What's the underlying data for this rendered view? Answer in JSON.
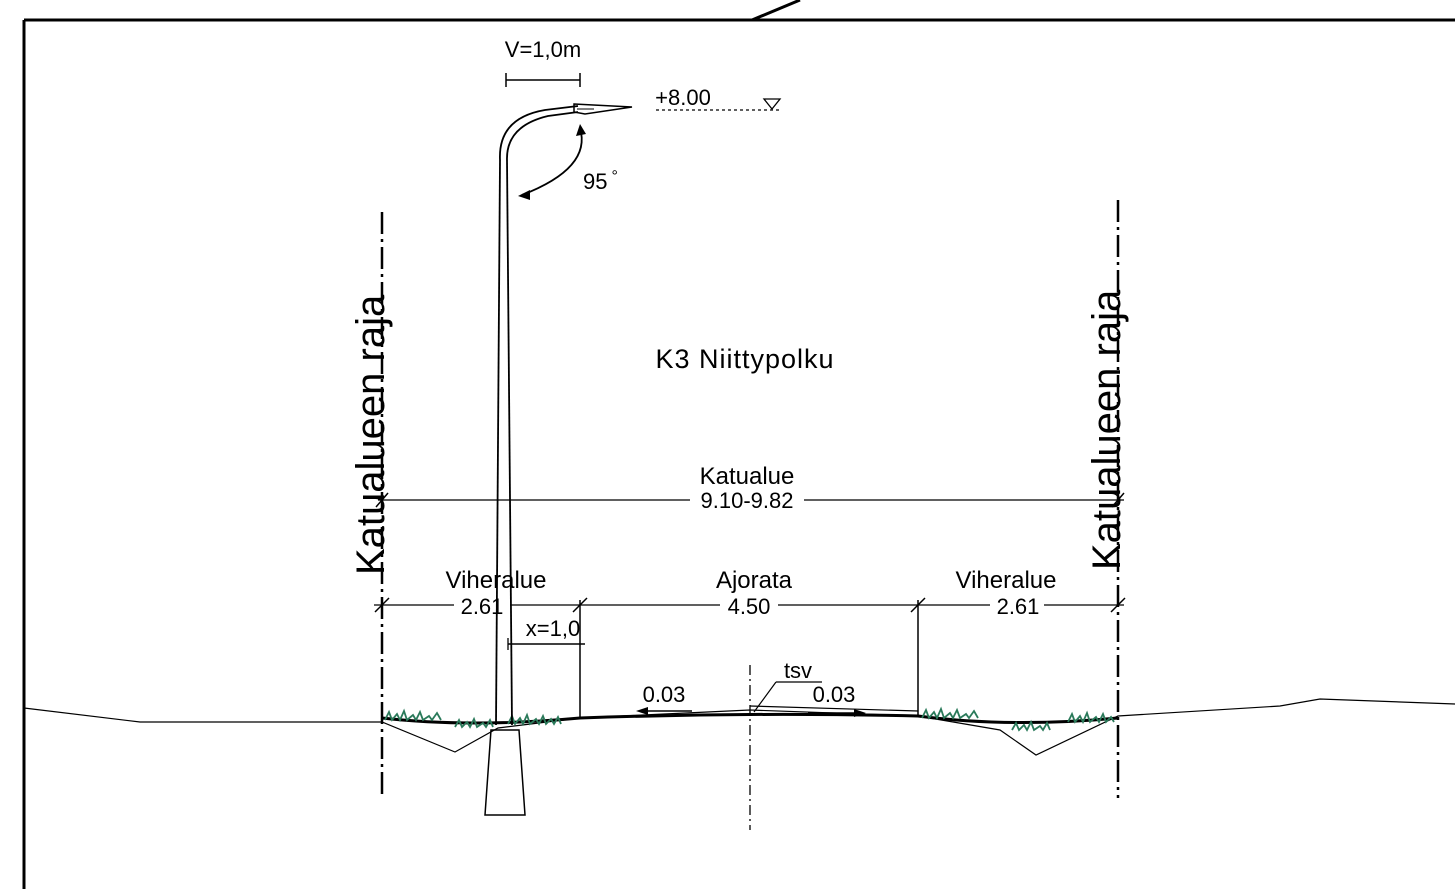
{
  "title": "K3 Niittypolku",
  "boundary_label_left": "Katualueen raja",
  "boundary_label_right": "Katualueen raja",
  "street_area": {
    "label": "Katualue",
    "width": "9.10-9.82"
  },
  "sections": [
    {
      "label": "Viheralue",
      "width": "2.61"
    },
    {
      "label": "Ajorata",
      "width": "4.50"
    },
    {
      "label": "Viheralue",
      "width": "2.61"
    }
  ],
  "lamp": {
    "outreach_label": "V=1,0m",
    "height_label": "+8.00",
    "tilt_label": "95",
    "tilt_unit": "°",
    "offset_label": "x=1,0"
  },
  "slopes": {
    "left": "0.03",
    "right": "0.03"
  },
  "crown_label": "tsv"
}
